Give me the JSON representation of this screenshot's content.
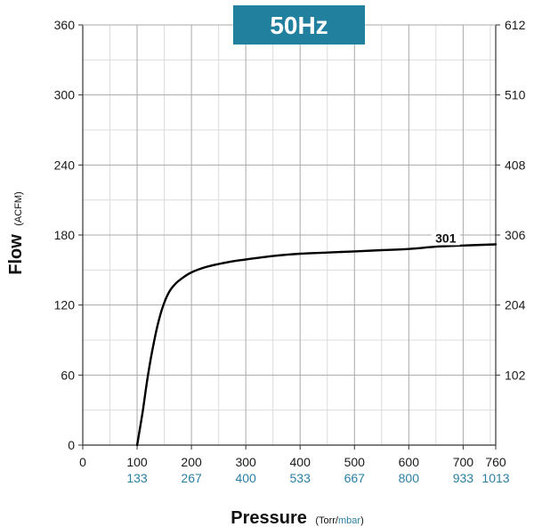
{
  "badge": {
    "text": "50Hz",
    "color": "#22809f"
  },
  "chart_data": {
    "type": "line",
    "grid": true,
    "xlim": [
      0,
      760
    ],
    "ylim": [
      0,
      360
    ],
    "y2lim": [
      0,
      612
    ],
    "xticks": [
      0,
      100,
      200,
      300,
      400,
      500,
      600,
      700,
      760
    ],
    "xticks_secondary": [
      {
        "at": 100,
        "label": "133"
      },
      {
        "at": 200,
        "label": "267"
      },
      {
        "at": 300,
        "label": "400"
      },
      {
        "at": 400,
        "label": "533"
      },
      {
        "at": 500,
        "label": "667"
      },
      {
        "at": 600,
        "label": "800"
      },
      {
        "at": 700,
        "label": "933"
      },
      {
        "at": 760,
        "label": "1013"
      }
    ],
    "yticks": [
      0,
      60,
      120,
      180,
      240,
      300,
      360
    ],
    "y2ticks": [
      {
        "at": 60,
        "label": "102"
      },
      {
        "at": 120,
        "label": "204"
      },
      {
        "at": 180,
        "label": "306"
      },
      {
        "at": 240,
        "label": "408"
      },
      {
        "at": 300,
        "label": "510"
      },
      {
        "at": 360,
        "label": "612"
      }
    ],
    "xlabel": {
      "main": "Pressure",
      "unit_open": "(Torr/",
      "unit_alt": "mbar",
      "unit_close": ")"
    },
    "ylabel": {
      "main": "Flow",
      "unit": "(ACFM)"
    },
    "series": [
      {
        "name": "301",
        "color": "#000000",
        "x": [
          100,
          110,
          120,
          130,
          140,
          150,
          160,
          170,
          180,
          200,
          230,
          270,
          300,
          350,
          400,
          450,
          500,
          550,
          600,
          650,
          700,
          760
        ],
        "y": [
          0,
          28,
          60,
          86,
          107,
          122,
          132,
          138,
          142,
          148,
          153,
          157,
          159,
          162,
          164,
          165,
          166,
          167,
          168,
          170,
          171,
          172
        ]
      }
    ]
  }
}
